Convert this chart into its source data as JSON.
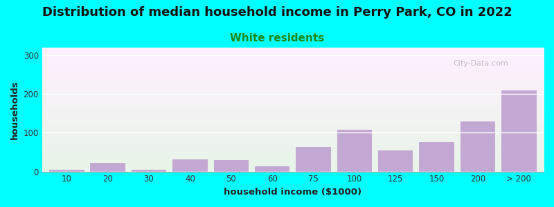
{
  "title": "Distribution of median household income in Perry Park, CO in 2022",
  "subtitle": "White residents",
  "xlabel": "household income ($1000)",
  "ylabel": "households",
  "background_color": "#00FFFF",
  "bar_color": "#C4A8D4",
  "categories": [
    "10",
    "20",
    "30",
    "40",
    "50",
    "60",
    "75",
    "100",
    "125",
    "150",
    "200",
    "> 200"
  ],
  "values": [
    5,
    22,
    5,
    32,
    30,
    13,
    63,
    108,
    55,
    75,
    130,
    210
  ],
  "yticks": [
    0,
    100,
    200,
    300
  ],
  "ylim": [
    0,
    320
  ],
  "title_fontsize": 13,
  "subtitle_fontsize": 11,
  "subtitle_color": "#1a8a1a",
  "watermark": "City-Data.com"
}
